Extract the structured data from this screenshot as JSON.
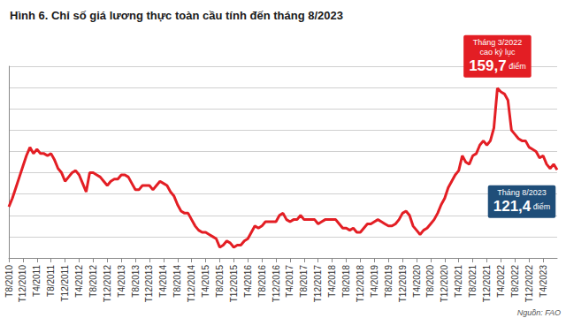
{
  "chart_data": {
    "type": "line",
    "title": "Hình 6. Chỉ số giá lương thực toàn cầu tính đến tháng 8/2023",
    "source": "Nguồn: FAO",
    "color": "#e31e24",
    "grid": true,
    "tick_labels": "x",
    "ylim": [
      80,
      170
    ],
    "yticks": [
      80,
      90,
      100,
      110,
      120,
      130,
      140,
      150,
      160,
      170
    ],
    "categories": [
      "T8/2010",
      null,
      null,
      null,
      "T12/2010",
      null,
      null,
      null,
      "T4/2011",
      null,
      null,
      null,
      "T8/2011",
      null,
      null,
      null,
      "T12/2011",
      null,
      null,
      null,
      "T4/2012",
      null,
      null,
      null,
      "T8/2012",
      null,
      null,
      null,
      "T12/2012",
      null,
      null,
      null,
      "T4/2013",
      null,
      null,
      null,
      "T8/2013",
      null,
      null,
      null,
      "T12/2013",
      null,
      null,
      null,
      "T4/2014",
      null,
      null,
      null,
      "T8/2014",
      null,
      null,
      null,
      "T12/2014",
      null,
      null,
      null,
      "T4/2015",
      null,
      null,
      null,
      "T8/2015",
      null,
      null,
      null,
      "T12/2015",
      null,
      null,
      null,
      "T4/2016",
      null,
      null,
      null,
      "T8/2016",
      null,
      null,
      null,
      "T12/2016",
      null,
      null,
      null,
      "T4/2017",
      null,
      null,
      null,
      "T8/2017",
      null,
      null,
      null,
      "T12/2017",
      null,
      null,
      null,
      "T4/2018",
      null,
      null,
      null,
      "T8/2018",
      null,
      null,
      null,
      "T12/2018",
      null,
      null,
      null,
      "T4/2019",
      null,
      null,
      null,
      "T8/2019",
      null,
      null,
      null,
      "T12/2019",
      null,
      null,
      null,
      "T4/2020",
      null,
      null,
      null,
      "T8/2020",
      null,
      null,
      null,
      "T12/2020",
      null,
      null,
      null,
      "T4/2021",
      null,
      null,
      null,
      "T8/2021",
      null,
      null,
      null,
      "T12/2021",
      null,
      null,
      null,
      "T4/2022",
      null,
      null,
      null,
      "T8/2022",
      null,
      null,
      null,
      "T12/2022",
      null,
      null,
      null,
      "T4/2023",
      null,
      null,
      null,
      null
    ],
    "values": [
      104,
      108,
      113,
      118,
      123,
      128,
      131.9,
      129,
      131,
      129,
      129,
      128,
      129,
      126,
      122,
      120,
      116,
      118,
      120,
      121,
      119,
      115,
      111,
      120,
      120,
      119,
      118,
      116,
      114,
      116,
      117,
      117,
      119,
      119,
      118,
      115,
      112,
      112,
      114,
      114,
      114,
      112,
      114,
      116,
      115,
      114,
      111,
      109,
      105,
      102,
      101,
      101,
      98,
      95,
      93,
      92,
      92,
      91,
      90,
      89,
      85,
      86,
      88,
      87,
      85,
      86,
      86,
      88,
      89,
      92,
      95,
      94,
      95,
      97,
      97,
      97,
      97,
      100,
      101,
      98,
      97,
      98,
      98,
      100,
      98,
      98,
      98,
      98,
      96,
      97,
      98,
      98,
      98,
      98,
      96,
      94,
      94,
      93,
      94,
      92,
      92,
      94,
      96,
      96,
      97,
      98,
      97,
      96,
      95,
      95,
      96,
      98,
      101,
      102,
      100,
      95,
      93,
      91,
      93,
      94,
      96,
      98,
      101,
      105,
      108,
      113,
      116,
      119,
      121,
      128,
      125,
      124,
      128,
      129,
      133,
      135,
      133,
      135,
      141,
      159.7,
      158,
      157,
      154,
      140,
      138,
      136,
      135,
      135,
      132,
      131,
      130,
      127,
      128,
      124,
      122,
      124,
      121.4
    ],
    "annotations": [
      {
        "text": [
          "Tháng 3/2022",
          "cao kỷ lục"
        ],
        "value": 159.7,
        "label": "159,7",
        "unit": "điểm",
        "color": "#e31e24"
      },
      {
        "text": [
          "Tháng 8/2023"
        ],
        "value": 121.4,
        "label": "121,4",
        "unit": "điểm",
        "color": "#1f4e79"
      }
    ]
  }
}
